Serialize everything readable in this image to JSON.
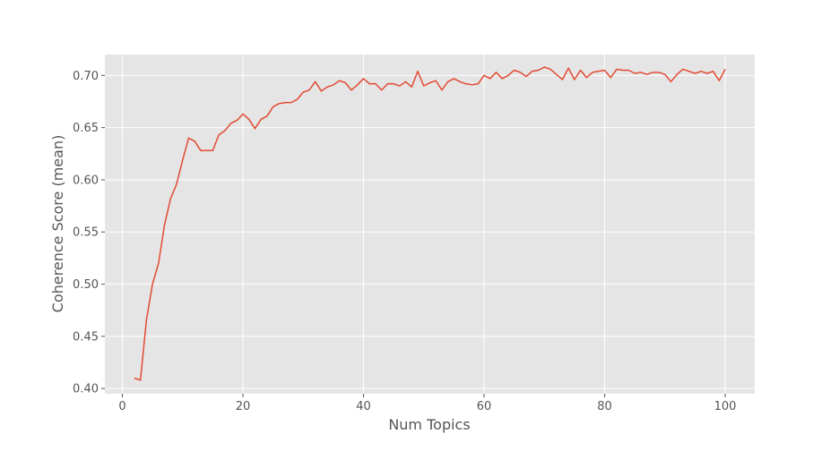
{
  "chart_data": {
    "type": "line",
    "title": "",
    "xlabel": "Num Topics",
    "ylabel": "Coherence Score (mean)",
    "xlim": [
      -2.9,
      104.9
    ],
    "ylim": [
      0.395,
      0.72
    ],
    "xticks": [
      0,
      20,
      40,
      60,
      80,
      100
    ],
    "yticks": [
      0.4,
      0.45,
      0.5,
      0.55,
      0.6,
      0.65,
      0.7
    ],
    "grid": true,
    "legend": "none",
    "style": {
      "background": "#e5e5e5",
      "grid_color": "#ffffff",
      "line_color": "#e24a33"
    },
    "series": [
      {
        "x": [
          2,
          3,
          4,
          5,
          6,
          7,
          8,
          9,
          10,
          11,
          12,
          13,
          14,
          15,
          16,
          17,
          18,
          19,
          20,
          21,
          22,
          23,
          24,
          25,
          26,
          27,
          28,
          29,
          30,
          31,
          32,
          33,
          34,
          35,
          36,
          37,
          38,
          39,
          40,
          41,
          42,
          43,
          44,
          45,
          46,
          47,
          48,
          49,
          50,
          51,
          52,
          53,
          54,
          55,
          56,
          57,
          58,
          59,
          60,
          61,
          62,
          63,
          64,
          65,
          66,
          67,
          68,
          69,
          70,
          71,
          72,
          73,
          74,
          75,
          76,
          77,
          78,
          79,
          80,
          81,
          82,
          83,
          84,
          85,
          86,
          87,
          88,
          89,
          90,
          91,
          92,
          93,
          94,
          95,
          96,
          97,
          98,
          99,
          100
        ],
        "values": [
          0.41,
          0.408,
          0.466,
          0.5,
          0.52,
          0.557,
          0.582,
          0.596,
          0.619,
          0.64,
          0.637,
          0.628,
          0.628,
          0.628,
          0.643,
          0.647,
          0.654,
          0.657,
          0.663,
          0.658,
          0.649,
          0.658,
          0.661,
          0.67,
          0.673,
          0.674,
          0.674,
          0.677,
          0.684,
          0.686,
          0.694,
          0.685,
          0.689,
          0.691,
          0.695,
          0.693,
          0.686,
          0.691,
          0.697,
          0.692,
          0.692,
          0.686,
          0.692,
          0.692,
          0.69,
          0.694,
          0.689,
          0.704,
          0.69,
          0.693,
          0.695,
          0.686,
          0.694,
          0.697,
          0.694,
          0.692,
          0.691,
          0.692,
          0.7,
          0.697,
          0.703,
          0.697,
          0.7,
          0.705,
          0.703,
          0.699,
          0.704,
          0.705,
          0.708,
          0.706,
          0.701,
          0.696,
          0.707,
          0.696,
          0.705,
          0.698,
          0.703,
          0.704,
          0.705,
          0.698,
          0.706,
          0.705,
          0.705,
          0.702,
          0.703,
          0.701,
          0.703,
          0.703,
          0.701,
          0.694,
          0.701,
          0.706,
          0.704,
          0.702,
          0.704,
          0.702,
          0.704,
          0.695,
          0.706
        ]
      }
    ]
  }
}
